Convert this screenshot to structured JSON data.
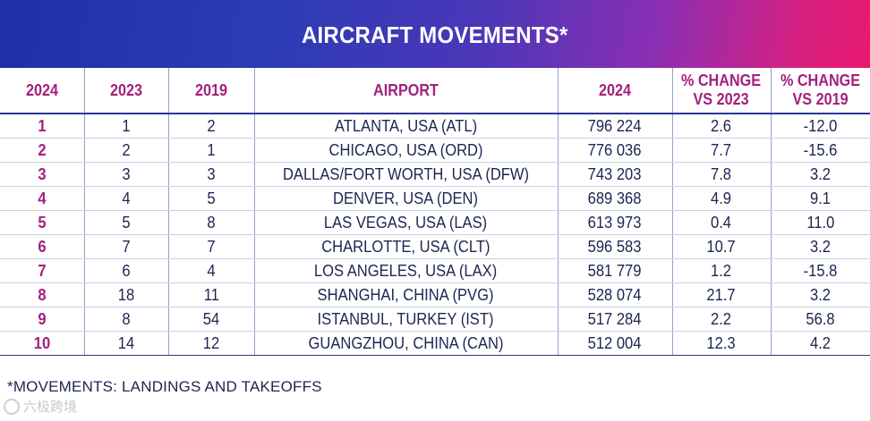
{
  "title": "AIRCRAFT MOVEMENTS*",
  "headers": [
    "2024",
    "2023",
    "2019",
    "AIRPORT",
    "2024",
    "% CHANGE VS 2023",
    "% CHANGE VS 2019"
  ],
  "header_lines": {
    "change_2023": [
      "% CHANGE",
      "VS 2023"
    ],
    "change_2019": [
      "% CHANGE",
      "VS 2019"
    ]
  },
  "rows": [
    {
      "rank_2024": "1",
      "rank_2023": "1",
      "rank_2019": "2",
      "airport": "ATLANTA, USA (ATL)",
      "movements_2024": "796 224",
      "change_vs_2023": "2.6",
      "change_vs_2019": "-12.0"
    },
    {
      "rank_2024": "2",
      "rank_2023": "2",
      "rank_2019": "1",
      "airport": "CHICAGO, USA (ORD)",
      "movements_2024": "776 036",
      "change_vs_2023": "7.7",
      "change_vs_2019": "-15.6"
    },
    {
      "rank_2024": "3",
      "rank_2023": "3",
      "rank_2019": "3",
      "airport": "DALLAS/FORT WORTH, USA (DFW)",
      "movements_2024": "743 203",
      "change_vs_2023": "7.8",
      "change_vs_2019": "3.2"
    },
    {
      "rank_2024": "4",
      "rank_2023": "4",
      "rank_2019": "5",
      "airport": "DENVER, USA (DEN)",
      "movements_2024": "689 368",
      "change_vs_2023": "4.9",
      "change_vs_2019": "9.1"
    },
    {
      "rank_2024": "5",
      "rank_2023": "5",
      "rank_2019": "8",
      "airport": "LAS VEGAS, USA (LAS)",
      "movements_2024": "613 973",
      "change_vs_2023": "0.4",
      "change_vs_2019": "11.0"
    },
    {
      "rank_2024": "6",
      "rank_2023": "7",
      "rank_2019": "7",
      "airport": "CHARLOTTE, USA (CLT)",
      "movements_2024": "596 583",
      "change_vs_2023": "10.7",
      "change_vs_2019": "3.2"
    },
    {
      "rank_2024": "7",
      "rank_2023": "6",
      "rank_2019": "4",
      "airport": "LOS ANGELES, USA (LAX)",
      "movements_2024": "581 779",
      "change_vs_2023": "1.2",
      "change_vs_2019": "-15.8"
    },
    {
      "rank_2024": "8",
      "rank_2023": "18",
      "rank_2019": "11",
      "airport": "SHANGHAI, CHINA (PVG)",
      "movements_2024": "528 074",
      "change_vs_2023": "21.7",
      "change_vs_2019": "3.2"
    },
    {
      "rank_2024": "9",
      "rank_2023": "8",
      "rank_2019": "54",
      "airport": "ISTANBUL, TURKEY (IST)",
      "movements_2024": "517 284",
      "change_vs_2023": "2.2",
      "change_vs_2019": "56.8"
    },
    {
      "rank_2024": "10",
      "rank_2023": "14",
      "rank_2019": "12",
      "airport": "GUANGZHOU, CHINA (CAN)",
      "movements_2024": "512 004",
      "change_vs_2023": "12.3",
      "change_vs_2019": "4.2"
    }
  ],
  "footnote": "*MOVEMENTS: LANDINGS AND TAKEOFFS",
  "watermark": "六极跨境",
  "colors": {
    "accent_magenta": "#a4207e",
    "text_navy": "#1d2552",
    "gradient_start": "#1f2fa8",
    "gradient_end": "#e81a6f"
  }
}
